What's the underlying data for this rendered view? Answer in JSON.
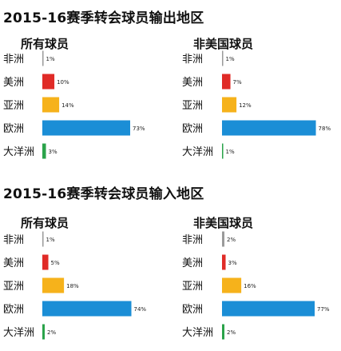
{
  "chart_data": [
    {
      "type": "bar",
      "title": "2015-16赛季转会球员输出地区",
      "subtitle": "所有球员",
      "categories": [
        "非洲",
        "美洲",
        "亚洲",
        "欧洲",
        "大洋洲"
      ],
      "values": [
        1,
        10,
        14,
        73,
        3
      ],
      "value_labels": [
        "1%",
        "10%",
        "14%",
        "73%",
        "3%"
      ],
      "xlim": [
        0,
        100
      ],
      "grid": false
    },
    {
      "type": "bar",
      "subtitle": "非美国球员",
      "categories": [
        "非洲",
        "美洲",
        "亚洲",
        "欧洲",
        "大洋洲"
      ],
      "values": [
        1,
        7,
        12,
        78,
        1
      ],
      "value_labels": [
        "1%",
        "7%",
        "12%",
        "78%",
        "1%"
      ],
      "xlim": [
        0,
        100
      ],
      "grid": false
    },
    {
      "type": "bar",
      "title": "2015-16赛季转会球员输入地区",
      "subtitle": "所有球员",
      "categories": [
        "非洲",
        "美洲",
        "亚洲",
        "欧洲",
        "大洋洲"
      ],
      "values": [
        1,
        5,
        18,
        74,
        2
      ],
      "value_labels": [
        "1%",
        "5%",
        "18%",
        "74%",
        "2%"
      ],
      "xlim": [
        0,
        100
      ],
      "grid": false
    },
    {
      "type": "bar",
      "subtitle": "非美国球员",
      "categories": [
        "非洲",
        "美洲",
        "亚洲",
        "欧洲",
        "大洋洲"
      ],
      "values": [
        2,
        3,
        16,
        77,
        2
      ],
      "value_labels": [
        "2%",
        "3%",
        "16%",
        "77%",
        "2%"
      ],
      "xlim": [
        0,
        100
      ],
      "grid": false
    }
  ],
  "colors": {
    "非洲": "#9a9a9a",
    "美洲": "#e02b27",
    "亚洲": "#f6b21b",
    "欧洲": "#1b8ed6",
    "大洋洲": "#2aa34a"
  }
}
